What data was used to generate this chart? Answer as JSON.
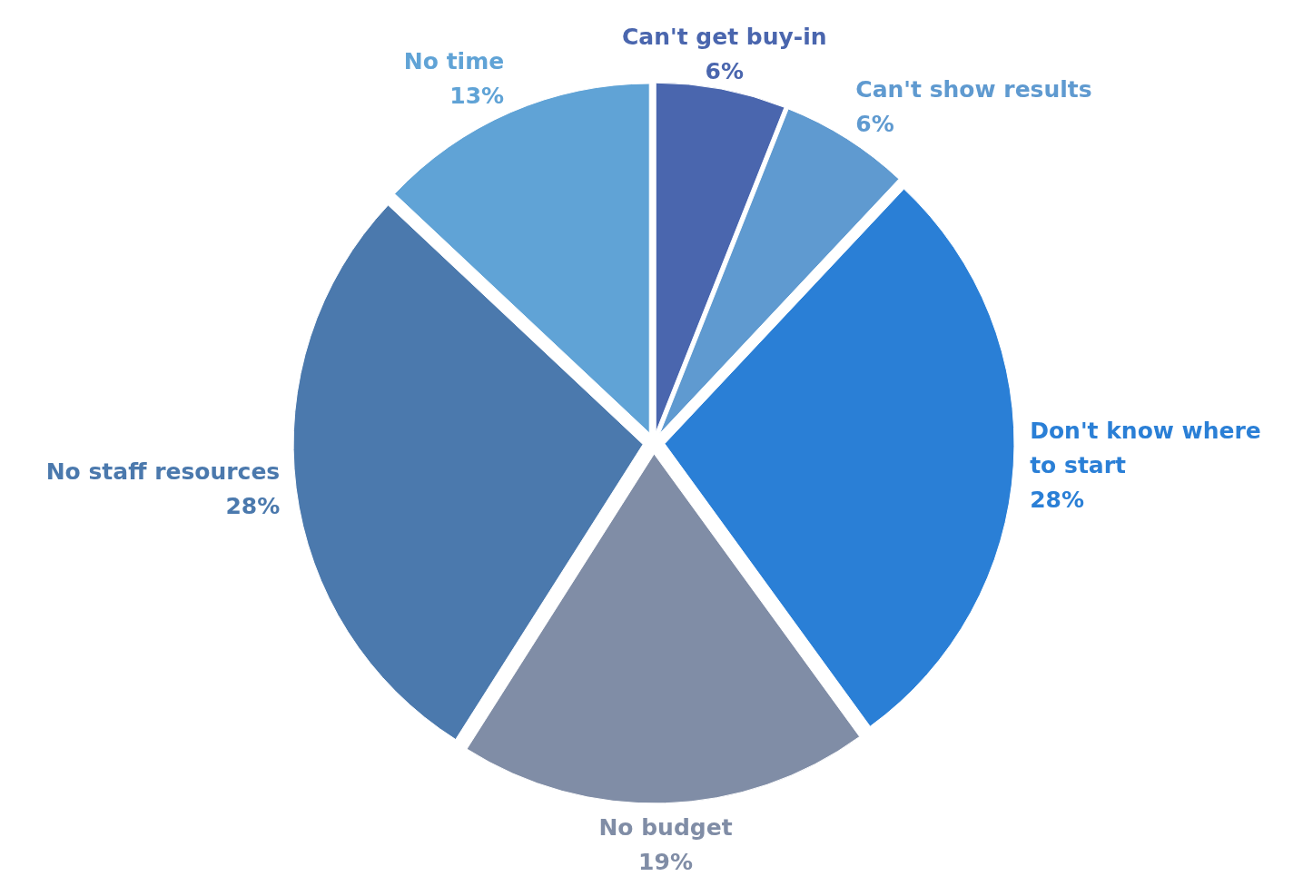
{
  "chart_data": {
    "type": "pie",
    "categories": [
      "Can't get buy-in",
      "Can't show results",
      "Don't know where to start",
      "No budget",
      "No staff resources",
      "No time"
    ],
    "values": [
      6,
      6,
      28,
      19,
      28,
      13
    ],
    "colors": [
      "#4a66ae",
      "#5f9ad0",
      "#2a7fd6",
      "#808da6",
      "#4b79ad",
      "#60a3d6"
    ],
    "value_labels": [
      "6%",
      "6%",
      "28%",
      "19%",
      "28%",
      "13%"
    ]
  }
}
